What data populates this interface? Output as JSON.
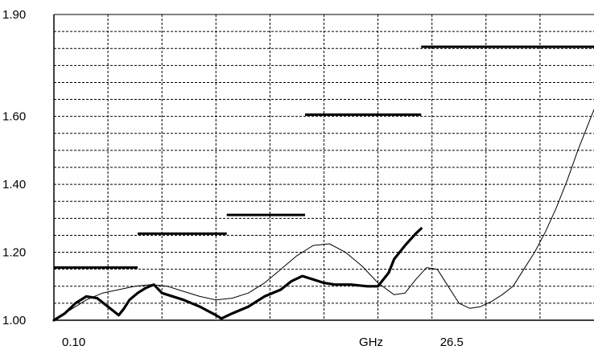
{
  "chart_data": {
    "type": "line",
    "title": "",
    "xlabel": "",
    "ylabel": "",
    "ylim": [
      1.0,
      1.9
    ],
    "grid": true,
    "y_tick_labels": [
      "1.90",
      "1.60",
      "1.40",
      "1.20",
      "1.00"
    ],
    "y_tick_values": [
      1.9,
      1.6,
      1.4,
      1.2,
      1.0
    ],
    "x_tick_labels": [
      {
        "label": "0.10",
        "at": 0.0
      },
      {
        "label": "GHz",
        "at": 0.55
      },
      {
        "label": "26.5",
        "at": 0.7
      }
    ],
    "series": [
      {
        "kind": "limit-steps",
        "segments": [
          {
            "x0": 0.0,
            "x1": 0.155,
            "y": 1.155
          },
          {
            "x0": 0.155,
            "x1": 0.32,
            "y": 1.255
          },
          {
            "x0": 0.32,
            "x1": 0.465,
            "y": 1.31
          },
          {
            "x0": 0.465,
            "x1": 0.68,
            "y": 1.605
          },
          {
            "x0": 0.68,
            "x1": 1.0,
            "y": 1.805
          }
        ]
      },
      {
        "kind": "thin",
        "x": [
          0.0,
          0.03,
          0.06,
          0.09,
          0.12,
          0.15,
          0.18,
          0.21,
          0.24,
          0.27,
          0.3,
          0.33,
          0.36,
          0.39,
          0.42,
          0.45,
          0.48,
          0.51,
          0.54,
          0.57,
          0.6,
          0.63,
          0.65,
          0.67,
          0.69,
          0.71,
          0.73,
          0.75,
          0.77,
          0.79,
          0.81,
          0.83,
          0.85,
          0.87,
          0.89,
          0.91,
          0.93,
          0.95,
          0.97,
          0.99,
          1.0
        ],
        "y": [
          1.0,
          1.03,
          1.06,
          1.08,
          1.09,
          1.1,
          1.105,
          1.1,
          1.085,
          1.07,
          1.06,
          1.065,
          1.08,
          1.11,
          1.15,
          1.19,
          1.22,
          1.225,
          1.2,
          1.16,
          1.11,
          1.075,
          1.08,
          1.12,
          1.155,
          1.15,
          1.1,
          1.05,
          1.035,
          1.04,
          1.055,
          1.075,
          1.1,
          1.15,
          1.2,
          1.26,
          1.33,
          1.41,
          1.5,
          1.58,
          1.62
        ]
      },
      {
        "kind": "thick",
        "x": [
          0.0,
          0.02,
          0.04,
          0.06,
          0.08,
          0.1,
          0.12,
          0.13,
          0.14,
          0.155,
          0.17,
          0.185,
          0.2,
          0.21,
          0.24,
          0.27,
          0.3,
          0.31,
          0.33,
          0.36,
          0.39,
          0.42,
          0.44,
          0.46,
          0.48,
          0.5,
          0.52,
          0.55,
          0.58,
          0.6,
          0.62,
          0.63,
          0.65,
          0.67,
          0.68
        ],
        "y": [
          1.0,
          1.02,
          1.05,
          1.07,
          1.065,
          1.04,
          1.015,
          1.035,
          1.06,
          1.08,
          1.095,
          1.105,
          1.08,
          1.075,
          1.06,
          1.04,
          1.015,
          1.005,
          1.02,
          1.04,
          1.07,
          1.09,
          1.115,
          1.13,
          1.12,
          1.11,
          1.105,
          1.105,
          1.1,
          1.1,
          1.14,
          1.18,
          1.22,
          1.255,
          1.27
        ]
      }
    ]
  }
}
